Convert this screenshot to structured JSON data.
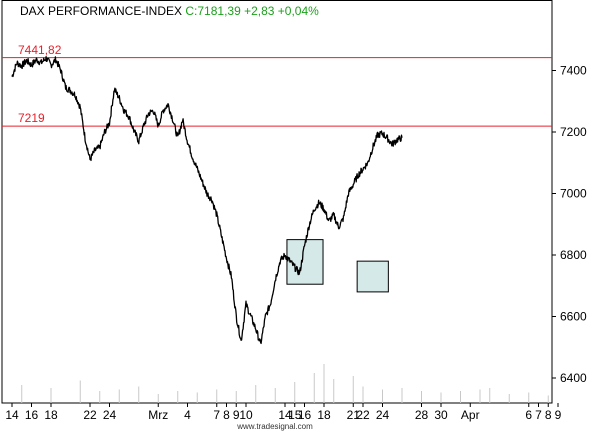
{
  "header": {
    "name": "DAX PERFORMANCE-INDEX",
    "quote": "C:7181,39 +2,83 +0,04%",
    "name_color": "#000000",
    "quote_color": "#1aa11a"
  },
  "footer": {
    "source": "www.tradesignal.com"
  },
  "colors": {
    "price": "#000000",
    "reference": "#e8202a",
    "box_fill": "#d6e9e9",
    "volume": "#c8c8c8",
    "axis": "#000000"
  },
  "chart_data": {
    "type": "line",
    "ylim": [
      6330,
      7570
    ],
    "y_ticks": [
      6400,
      6600,
      6800,
      7000,
      7200,
      7400
    ],
    "reference_lines": [
      {
        "label": "7441,82",
        "value": 7441.82
      },
      {
        "label": "7219",
        "value": 7219
      }
    ],
    "x_ticks": [
      {
        "label": "14",
        "d": 0
      },
      {
        "label": "16",
        "d": 2
      },
      {
        "label": "18",
        "d": 4
      },
      {
        "label": "22",
        "d": 8
      },
      {
        "label": "24",
        "d": 10
      },
      {
        "label": "Mrz",
        "d": 15
      },
      {
        "label": "4",
        "d": 18
      },
      {
        "label": "7",
        "d": 21
      },
      {
        "label": "8",
        "d": 22
      },
      {
        "label": "9",
        "d": 23
      },
      {
        "label": "10",
        "d": 24
      },
      {
        "label": "14",
        "d": 28
      },
      {
        "label": "15",
        "d": 29
      },
      {
        "label": "16",
        "d": 30
      },
      {
        "label": "18",
        "d": 32
      },
      {
        "label": "21",
        "d": 35
      },
      {
        "label": "22",
        "d": 36
      },
      {
        "label": "24",
        "d": 38
      },
      {
        "label": "28",
        "d": 42
      },
      {
        "label": "30",
        "d": 44
      },
      {
        "label": "Apr",
        "d": 47
      },
      {
        "label": "6",
        "d": 53
      },
      {
        "label": "7",
        "d": 54
      },
      {
        "label": "8",
        "d": 55
      },
      {
        "label": "9",
        "d": 56
      }
    ],
    "series": [
      {
        "values": [
          [
            0,
            7380
          ],
          [
            0.5,
            7425
          ],
          [
            1,
            7415
          ],
          [
            1.5,
            7432
          ],
          [
            2,
            7418
          ],
          [
            2.5,
            7435
          ],
          [
            3,
            7425
          ],
          [
            3.5,
            7440
          ],
          [
            4,
            7418
          ],
          [
            4.5,
            7436
          ],
          [
            5,
            7400
          ],
          [
            5.5,
            7345
          ],
          [
            6,
            7335
          ],
          [
            6.5,
            7320
          ],
          [
            7,
            7280
          ],
          [
            7.5,
            7180
          ],
          [
            8,
            7110
          ],
          [
            8.5,
            7140
          ],
          [
            9,
            7150
          ],
          [
            9.5,
            7200
          ],
          [
            10,
            7230
          ],
          [
            10.5,
            7340
          ],
          [
            11,
            7310
          ],
          [
            11.5,
            7270
          ],
          [
            12,
            7250
          ],
          [
            12.5,
            7205
          ],
          [
            13,
            7170
          ],
          [
            13.5,
            7220
          ],
          [
            14,
            7260
          ],
          [
            14.5,
            7270
          ],
          [
            15,
            7220
          ],
          [
            15.5,
            7270
          ],
          [
            16,
            7290
          ],
          [
            16.5,
            7240
          ],
          [
            17,
            7180
          ],
          [
            17.5,
            7240
          ],
          [
            18,
            7170
          ],
          [
            18.5,
            7120
          ],
          [
            19,
            7080
          ],
          [
            19.5,
            7040
          ],
          [
            20,
            7000
          ],
          [
            20.5,
            6980
          ],
          [
            21,
            6930
          ],
          [
            21.5,
            6860
          ],
          [
            22,
            6790
          ],
          [
            22.5,
            6730
          ],
          [
            23,
            6600
          ],
          [
            23.5,
            6520
          ],
          [
            24,
            6640
          ],
          [
            24.5,
            6600
          ],
          [
            25,
            6560
          ],
          [
            25.5,
            6510
          ],
          [
            26,
            6600
          ],
          [
            26.5,
            6640
          ],
          [
            27,
            6720
          ],
          [
            27.5,
            6780
          ],
          [
            28,
            6800
          ],
          [
            28.5,
            6780
          ],
          [
            29,
            6760
          ],
          [
            29.5,
            6740
          ],
          [
            30,
            6830
          ],
          [
            30.5,
            6900
          ],
          [
            31,
            6950
          ],
          [
            31.5,
            6970
          ],
          [
            32,
            6950
          ],
          [
            32.5,
            6910
          ],
          [
            33,
            6930
          ],
          [
            33.5,
            6890
          ],
          [
            34,
            6920
          ],
          [
            34.5,
            7000
          ],
          [
            35,
            7030
          ],
          [
            35.5,
            7060
          ],
          [
            36,
            7080
          ],
          [
            36.5,
            7100
          ],
          [
            37,
            7150
          ],
          [
            37.5,
            7190
          ],
          [
            38,
            7195
          ],
          [
            38.5,
            7180
          ],
          [
            39,
            7160
          ],
          [
            39.5,
            7175
          ],
          [
            40,
            7181
          ]
        ]
      }
    ],
    "boxes": [
      {
        "x0": 28.2,
        "x1": 31.9,
        "y_low": 6705,
        "y_high": 6850
      },
      {
        "x0": 35.4,
        "x1": 38.6,
        "y_low": 6680,
        "y_high": 6780
      }
    ],
    "volume": [
      [
        1,
        0.12
      ],
      [
        4,
        0.1
      ],
      [
        7,
        0.15
      ],
      [
        9,
        0.08
      ],
      [
        11,
        0.09
      ],
      [
        13,
        0.11
      ],
      [
        15,
        0.06
      ],
      [
        17,
        0.08
      ],
      [
        19,
        0.07
      ],
      [
        21,
        0.09
      ],
      [
        23,
        0.08
      ],
      [
        25,
        0.12
      ],
      [
        27,
        0.1
      ],
      [
        29,
        0.14
      ],
      [
        31,
        0.2
      ],
      [
        32,
        0.26
      ],
      [
        33,
        0.16
      ],
      [
        35,
        0.18
      ],
      [
        36,
        0.11
      ],
      [
        38,
        0.09
      ],
      [
        40,
        0.1
      ],
      [
        42,
        0.08
      ],
      [
        44,
        0.07
      ],
      [
        46,
        0.08
      ],
      [
        48,
        0.09
      ],
      [
        49,
        0.1
      ],
      [
        51,
        0.06
      ],
      [
        53,
        0.07
      ],
      [
        55,
        0.05
      ]
    ]
  }
}
